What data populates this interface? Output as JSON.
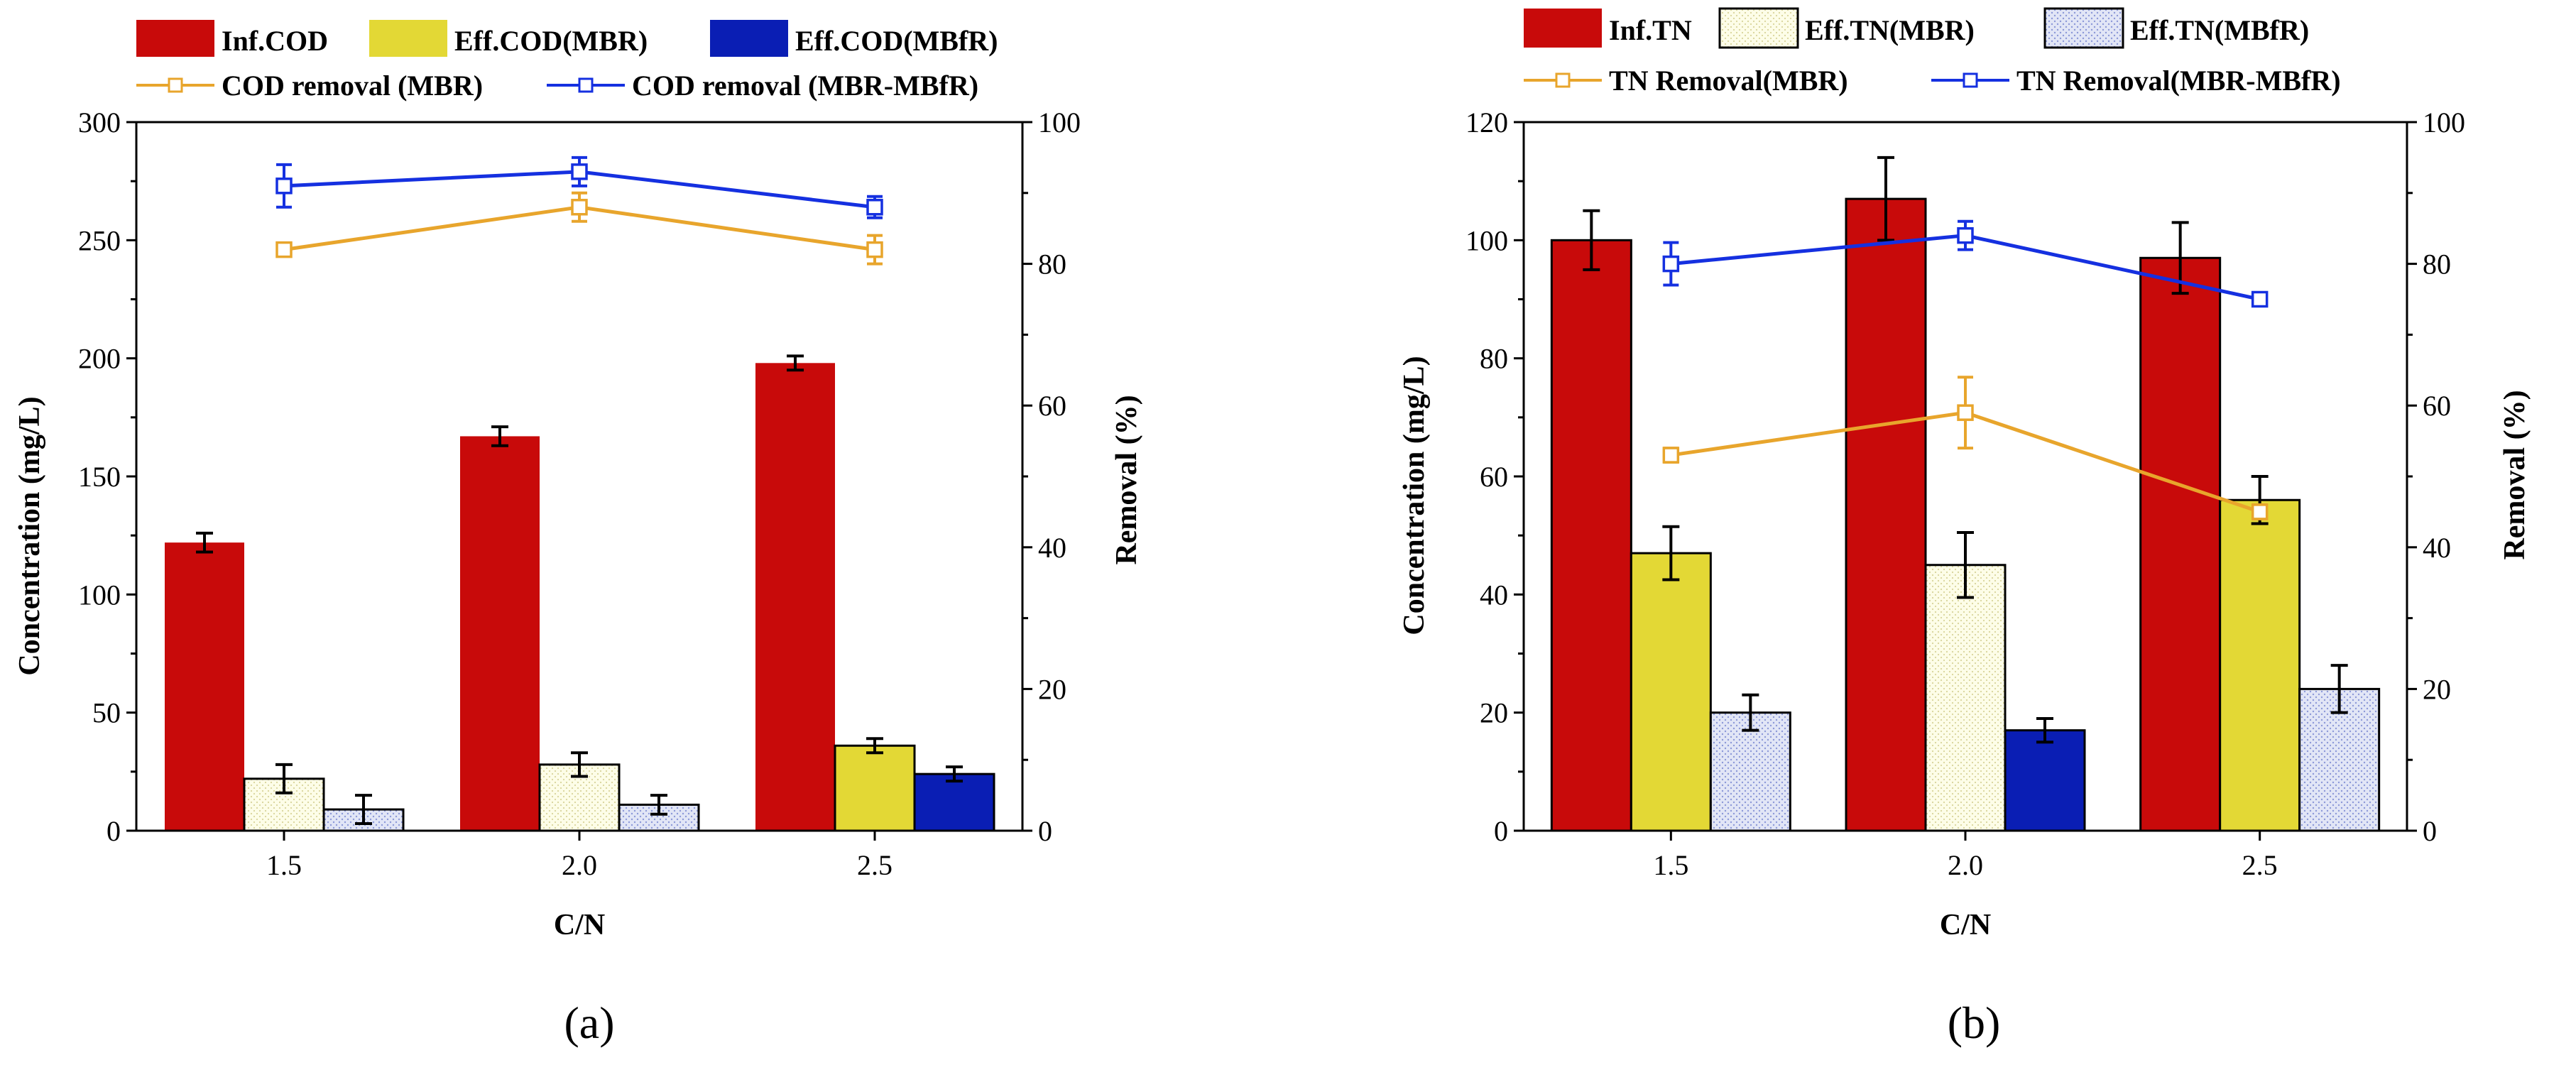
{
  "colors": {
    "inf": "#c80a0a",
    "eff_mbr": "#e3d835",
    "eff_mbfr": "#0a1eb4",
    "mbfr_light": "#e2e6f6",
    "mbr_light": "#fdfde8",
    "inf_light": "#f7d4d4",
    "line_mbr": "#e8a52c",
    "line_mbfr": "#1530e0"
  },
  "panel_labels": [
    "(a)",
    "(b)"
  ],
  "chart_data": [
    {
      "type": "bar",
      "categories": [
        "1.5",
        "2.0",
        "2.5"
      ],
      "xlabel": "C/N",
      "ylabel": "Concentration (mg/L)",
      "y2label": "Removal (%)",
      "ylim": [
        0,
        300
      ],
      "yticks": [
        0,
        50,
        100,
        150,
        200,
        250,
        300
      ],
      "y2lim": [
        0,
        100
      ],
      "y2ticks": [
        0,
        20,
        40,
        60,
        80,
        100
      ],
      "legend_position": "top",
      "series": [
        {
          "name": "Inf.COD",
          "values": [
            122,
            167,
            198
          ],
          "errors": [
            4,
            4,
            3
          ]
        },
        {
          "name": "Eff.COD(MBR)",
          "values": [
            22,
            28,
            36
          ],
          "errors": [
            6,
            5,
            3
          ]
        },
        {
          "name": "Eff.COD(MBfR)",
          "values": [
            9,
            11,
            24
          ],
          "errors": [
            6,
            4,
            3
          ]
        }
      ],
      "lines": [
        {
          "name": "COD removal (MBR)",
          "axis": "right",
          "values": [
            82,
            88,
            82
          ],
          "errors": [
            0.5,
            2,
            2
          ]
        },
        {
          "name": "COD removal (MBR-MBfR)",
          "axis": "right",
          "values": [
            91,
            93,
            88
          ],
          "errors": [
            3,
            2,
            1.5
          ]
        }
      ]
    },
    {
      "type": "bar",
      "categories": [
        "1.5",
        "2.0",
        "2.5"
      ],
      "xlabel": "C/N",
      "ylabel": "Concentration (mg/L)",
      "y2label": "Removal (%)",
      "ylim": [
        0,
        120
      ],
      "yticks": [
        0,
        20,
        40,
        60,
        80,
        100,
        120
      ],
      "y2lim": [
        0,
        100
      ],
      "y2ticks": [
        0,
        20,
        40,
        60,
        80,
        100
      ],
      "legend_position": "top",
      "series": [
        {
          "name": "Inf.TN",
          "values": [
            100,
            107,
            97
          ],
          "errors": [
            5,
            7,
            6
          ]
        },
        {
          "name": "Eff.TN(MBR)",
          "values": [
            47,
            45,
            56
          ],
          "errors": [
            4.5,
            5.5,
            4
          ]
        },
        {
          "name": "Eff.TN(MBfR)",
          "values": [
            20,
            17,
            24
          ],
          "errors": [
            3,
            2,
            4
          ]
        }
      ],
      "lines": [
        {
          "name": "TN Removal(MBR)",
          "axis": "right",
          "values": [
            53,
            59,
            45
          ],
          "errors": [
            1,
            5,
            1
          ]
        },
        {
          "name": "TN Removal(MBR-MBfR)",
          "axis": "right",
          "values": [
            80,
            84,
            75
          ],
          "errors": [
            3,
            2,
            0.5
          ]
        }
      ]
    }
  ]
}
